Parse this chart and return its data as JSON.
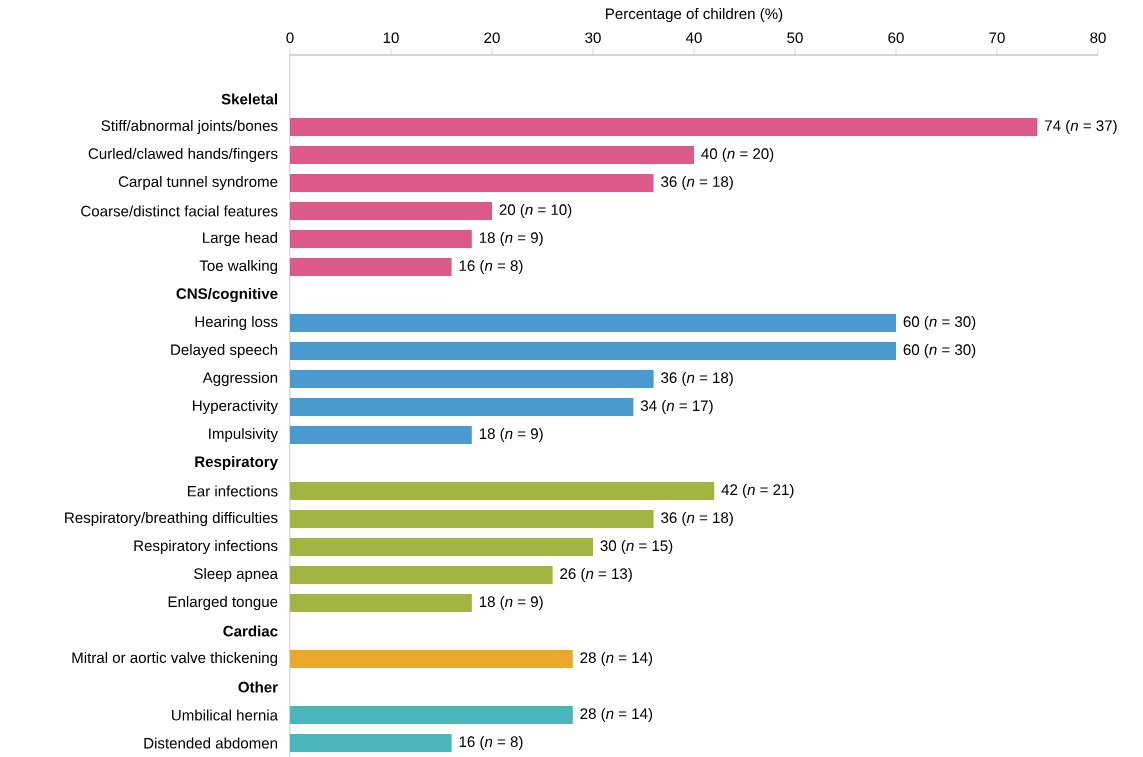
{
  "chart_data": {
    "type": "bar",
    "orientation": "horizontal",
    "xlabel": "Percentage of children (%)",
    "categories": [
      "Skeletal",
      "Stiff/abnormal joints/bones",
      "Curled/clawed hands/fingers",
      "Carpal tunnel syndrome",
      "Coarse/distinct facial features",
      "Large head",
      "Toe walking",
      "CNS/cognitive",
      "Hearing loss",
      "Delayed speech",
      "Aggression",
      "Hyperactivity",
      "Impulsivity",
      "Respiratory",
      "Ear infections",
      "Respiratory/breathing difficulties",
      "Respiratory infections",
      "Sleep apnea",
      "Enlarged tongue",
      "Cardiac",
      "Mitral or aortic valve thickening",
      "Other",
      "Umbilical hernia",
      "Distended abdomen"
    ],
    "values": [
      null,
      74,
      40,
      36,
      20,
      18,
      16,
      null,
      60,
      60,
      36,
      34,
      18,
      null,
      42,
      36,
      30,
      26,
      18,
      null,
      28,
      null,
      28,
      16
    ],
    "colors": [
      null,
      "#dc5a8a",
      "#dc5a8a",
      "#dc5a8a",
      "#dc5a8a",
      "#dc5a8a",
      "#dc5a8a",
      null,
      "#4a9ad0",
      "#4a9ad0",
      "#4a9ad0",
      "#4a9ad0",
      "#4a9ad0",
      null,
      "#a3b443",
      "#a3b443",
      "#a3b443",
      "#a3b443",
      "#a3b443",
      null,
      "#e9a82a",
      null,
      "#4ab5bb",
      "#4ab5bb"
    ],
    "value_labels": [
      null,
      "74 (*n* = 37)",
      "40 (*n* = 20)",
      "36 (*n* = 18)",
      "20 (*n* = 10)",
      "18 (*n* = 9)",
      "16 (*n* = 8)",
      null,
      "60 (*n* = 30)",
      "60 (*n* = 30)",
      "36 (*n* = 18)",
      "34 (*n* = 17)",
      "18 (*n* = 9)",
      null,
      "42 (*n* = 21)",
      "36 (*n* = 18)",
      "30 (*n* = 15)",
      "26 (*n* = 13)",
      "18 (*n* = 9)",
      null,
      "28 (*n* = 14)",
      null,
      "28 (*n* = 14)",
      "16 (*n* = 8)"
    ],
    "xlim": [
      0,
      80
    ],
    "xticks": [
      0,
      10,
      20,
      30,
      40,
      50,
      60,
      70,
      80
    ]
  }
}
